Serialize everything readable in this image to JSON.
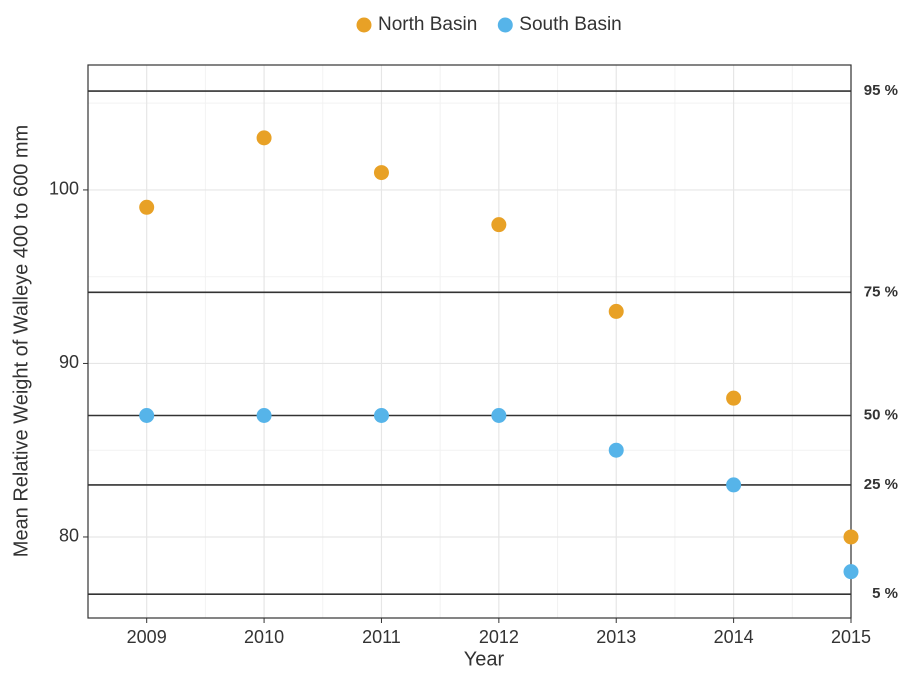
{
  "chart_data": {
    "type": "scatter",
    "x_label": "Year",
    "y_label": "Mean Relative Weight of Walleye 400 to 600 mm",
    "x": [
      2009,
      2010,
      2011,
      2012,
      2013,
      2014,
      2015
    ],
    "series": [
      {
        "name": "North Basin",
        "color": "#e8a126",
        "values": [
          99,
          103,
          101,
          98,
          93,
          88,
          80
        ]
      },
      {
        "name": "South Basin",
        "color": "#56b4e9",
        "values": [
          87,
          87,
          87,
          87,
          85,
          83,
          78
        ]
      }
    ],
    "reference_lines": [
      {
        "label": "95 %",
        "value": 105.7
      },
      {
        "label": "75 %",
        "value": 94.1
      },
      {
        "label": "50 %",
        "value": 87.0
      },
      {
        "label": "25 %",
        "value": 83.0
      },
      {
        "label": "5 %",
        "value": 76.7
      }
    ],
    "xlim": [
      2008.5,
      2015.0
    ],
    "xticks": [
      2009,
      2010,
      2011,
      2012,
      2013,
      2014,
      2015
    ],
    "ylim": [
      75.33,
      107.2
    ],
    "yticks": [
      80,
      90,
      100
    ],
    "grid": true,
    "legend": "top"
  }
}
